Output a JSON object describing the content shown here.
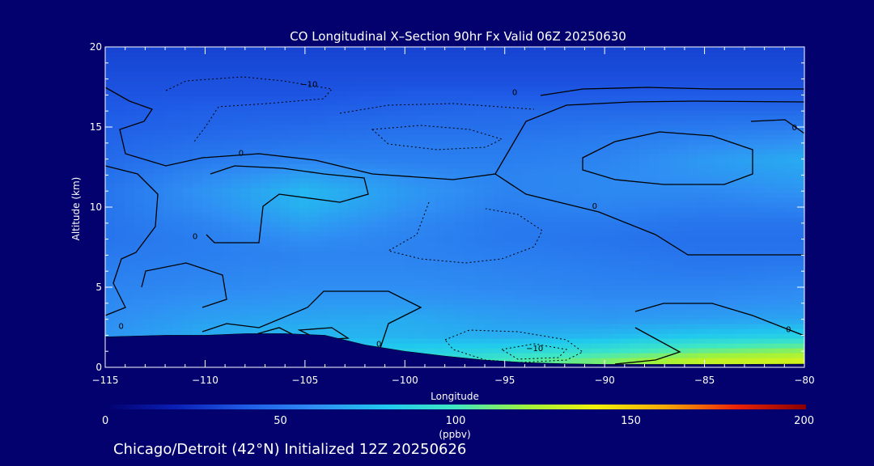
{
  "chart_data": {
    "type": "heatmap",
    "title": "CO Longitudinal X–Section 90hr  Fx Valid 06Z 20250630",
    "xlabel": "Longitude",
    "ylabel": "Altitude (km)",
    "xlim": [
      -115,
      -80
    ],
    "ylim": [
      0,
      20
    ],
    "x_ticks": [
      -115,
      -110,
      -105,
      -100,
      -95,
      -90,
      -85,
      -80
    ],
    "x_tick_labels": [
      "−115",
      "−110",
      "−105",
      "−100",
      "−95",
      "−90",
      "−85",
      "−80"
    ],
    "y_ticks": [
      0,
      5,
      10,
      15,
      20
    ],
    "y_tick_labels": [
      "0",
      "5",
      "10",
      "15",
      "20"
    ],
    "grid": false,
    "field": {
      "name": "CO",
      "units": "ppbv",
      "altitudes_km": [
        0.5,
        1,
        2,
        3,
        4,
        5,
        6,
        7,
        8,
        9,
        10,
        11,
        12,
        13,
        14,
        15,
        16,
        17,
        18,
        19,
        20
      ],
      "longitudes": [
        -115,
        -110,
        -105,
        -100,
        -95,
        -90,
        -85,
        -80
      ],
      "values": [
        [
          60,
          68,
          85,
          88,
          100,
          112,
          128,
          132
        ],
        [
          60,
          68,
          80,
          84,
          88,
          96,
          110,
          118
        ],
        [
          62,
          70,
          74,
          72,
          70,
          74,
          80,
          84
        ],
        [
          60,
          66,
          68,
          70,
          66,
          64,
          66,
          68
        ],
        [
          58,
          62,
          64,
          64,
          62,
          60,
          60,
          62
        ],
        [
          56,
          58,
          60,
          60,
          58,
          56,
          56,
          58
        ],
        [
          54,
          56,
          58,
          58,
          56,
          54,
          52,
          54
        ],
        [
          52,
          54,
          56,
          56,
          54,
          52,
          50,
          50
        ],
        [
          50,
          54,
          60,
          56,
          52,
          50,
          48,
          48
        ],
        [
          50,
          56,
          66,
          58,
          52,
          52,
          50,
          50
        ],
        [
          50,
          60,
          72,
          62,
          54,
          56,
          54,
          56
        ],
        [
          50,
          62,
          74,
          64,
          56,
          58,
          58,
          62
        ],
        [
          48,
          58,
          66,
          60,
          56,
          58,
          62,
          66
        ],
        [
          46,
          52,
          56,
          54,
          54,
          56,
          64,
          70
        ],
        [
          44,
          48,
          50,
          52,
          52,
          54,
          58,
          62
        ],
        [
          42,
          44,
          46,
          48,
          48,
          50,
          52,
          54
        ],
        [
          40,
          42,
          42,
          44,
          46,
          46,
          46,
          46
        ],
        [
          38,
          38,
          38,
          40,
          40,
          40,
          40,
          40
        ],
        [
          36,
          36,
          36,
          36,
          36,
          36,
          36,
          36
        ],
        [
          34,
          34,
          34,
          34,
          34,
          34,
          34,
          34
        ],
        [
          32,
          32,
          32,
          32,
          32,
          32,
          32,
          32
        ]
      ]
    },
    "terrain_km": {
      "longitudes": [
        -115,
        -112,
        -110,
        -108,
        -106,
        -104,
        -102,
        -100,
        -98,
        -96,
        -94,
        -92,
        -90,
        -88,
        -86,
        -84,
        -82,
        -80
      ],
      "heights": [
        1.9,
        2.0,
        2.0,
        2.1,
        2.1,
        2.0,
        1.4,
        1.0,
        0.7,
        0.45,
        0.3,
        0.22,
        0.18,
        0.18,
        0.18,
        0.18,
        0.19,
        0.2
      ]
    },
    "contour_labels": [
      {
        "text": "−10",
        "lon": -104.8,
        "alt": 17.5
      },
      {
        "text": "0",
        "lon": -108.2,
        "alt": 13.2
      },
      {
        "text": "0",
        "lon": -94.5,
        "alt": 17.0
      },
      {
        "text": "0",
        "lon": -80.5,
        "alt": 14.8
      },
      {
        "text": "0",
        "lon": -110.5,
        "alt": 8.0
      },
      {
        "text": "0",
        "lon": -90.5,
        "alt": 9.9
      },
      {
        "text": "0",
        "lon": -114.2,
        "alt": 2.4
      },
      {
        "text": "0",
        "lon": -101.3,
        "alt": 1.3
      },
      {
        "text": "−10",
        "lon": -93.5,
        "alt": 1.0
      },
      {
        "text": "0",
        "lon": -80.8,
        "alt": 2.2
      }
    ],
    "colorbar": {
      "min": 0,
      "max": 200,
      "ticks": [
        0,
        50,
        100,
        150,
        200
      ],
      "label": "(ppbv)",
      "colors": [
        "#02016e",
        "#0a1fb4",
        "#1f5be6",
        "#2f8ef3",
        "#21c9ee",
        "#3fe8c2",
        "#9ef23d",
        "#f2f20a",
        "#f5a807",
        "#ea2407",
        "#8a0000"
      ]
    },
    "footer": "Chicago/Detroit (42°N) Initialized 12Z 20250626"
  }
}
